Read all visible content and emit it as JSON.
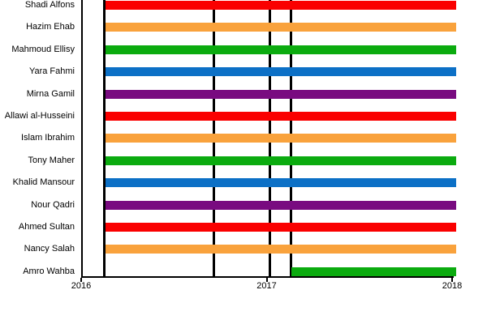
{
  "chart_data": {
    "type": "bar",
    "variant": "horizontal-timeline-gantt",
    "title": "",
    "xlabel": "",
    "ylabel": "",
    "x_axis": {
      "tick_labels": [
        "2016",
        "2017",
        "2018"
      ],
      "tick_years": [
        2016,
        2017,
        2018
      ],
      "range_years": [
        2015.56,
        2018.19
      ]
    },
    "grid": false,
    "legend": false,
    "bar_colors_cycle": [
      "#FA0000",
      "#F9A23C",
      "#0BAB0F",
      "#0C70C6",
      "#790B80"
    ],
    "axis_color": "#000000",
    "event_line_color": "#000000",
    "event_lines_years": [
      2016.125,
      2016.716,
      2017.018,
      2017.131
    ],
    "series": [
      {
        "name": "Shadi Alfons",
        "start": 2016.13,
        "end": 2018.02,
        "color": "#FA0000"
      },
      {
        "name": "Hazim Ehab",
        "start": 2016.13,
        "end": 2018.02,
        "color": "#F9A23C"
      },
      {
        "name": "Mahmoud Ellisy",
        "start": 2016.13,
        "end": 2018.02,
        "color": "#0BAB0F"
      },
      {
        "name": "Yara Fahmi",
        "start": 2016.13,
        "end": 2018.02,
        "color": "#0C70C6"
      },
      {
        "name": "Mirna Gamil",
        "start": 2016.13,
        "end": 2018.02,
        "color": "#790B80"
      },
      {
        "name": "Allawi al-Husseini",
        "start": 2016.13,
        "end": 2018.02,
        "color": "#FA0000"
      },
      {
        "name": "Islam Ibrahim",
        "start": 2016.13,
        "end": 2018.02,
        "color": "#F9A23C"
      },
      {
        "name": "Tony Maher",
        "start": 2016.13,
        "end": 2018.02,
        "color": "#0BAB0F"
      },
      {
        "name": "Khalid Mansour",
        "start": 2016.13,
        "end": 2018.02,
        "color": "#0C70C6"
      },
      {
        "name": "Nour Qadri",
        "start": 2016.13,
        "end": 2018.02,
        "color": "#790B80"
      },
      {
        "name": "Ahmed Sultan",
        "start": 2016.13,
        "end": 2018.02,
        "color": "#FA0000"
      },
      {
        "name": "Nancy Salah",
        "start": 2016.13,
        "end": 2018.02,
        "color": "#F9A23C"
      },
      {
        "name": "Amro Wahba",
        "start": 2017.135,
        "end": 2018.02,
        "color": "#0BAB0F"
      }
    ]
  }
}
